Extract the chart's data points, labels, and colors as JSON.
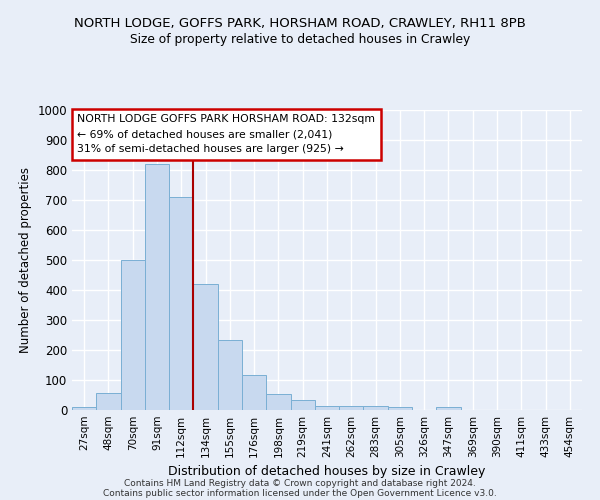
{
  "title1": "NORTH LODGE, GOFFS PARK, HORSHAM ROAD, CRAWLEY, RH11 8PB",
  "title2": "Size of property relative to detached houses in Crawley",
  "xlabel": "Distribution of detached houses by size in Crawley",
  "ylabel": "Number of detached properties",
  "categories": [
    "27sqm",
    "48sqm",
    "70sqm",
    "91sqm",
    "112sqm",
    "134sqm",
    "155sqm",
    "176sqm",
    "198sqm",
    "219sqm",
    "241sqm",
    "262sqm",
    "283sqm",
    "305sqm",
    "326sqm",
    "347sqm",
    "369sqm",
    "390sqm",
    "411sqm",
    "433sqm",
    "454sqm"
  ],
  "values": [
    10,
    58,
    500,
    820,
    710,
    420,
    232,
    118,
    55,
    35,
    15,
    15,
    12,
    10,
    0,
    10,
    0,
    0,
    0,
    0,
    0
  ],
  "bar_color": "#c8d9ef",
  "bar_edge_color": "#7aafd4",
  "red_line_index": 5,
  "ylim": [
    0,
    1000
  ],
  "yticks": [
    0,
    100,
    200,
    300,
    400,
    500,
    600,
    700,
    800,
    900,
    1000
  ],
  "annotation_line1": "NORTH LODGE GOFFS PARK HORSHAM ROAD: 132sqm",
  "annotation_line2": "← 69% of detached houses are smaller (2,041)",
  "annotation_line3": "31% of semi-detached houses are larger (925) →",
  "footer1": "Contains HM Land Registry data © Crown copyright and database right 2024.",
  "footer2": "Contains public sector information licensed under the Open Government Licence v3.0.",
  "bg_color": "#e8eef8",
  "plot_bg_color": "#e8eef8",
  "grid_color": "#ffffff"
}
